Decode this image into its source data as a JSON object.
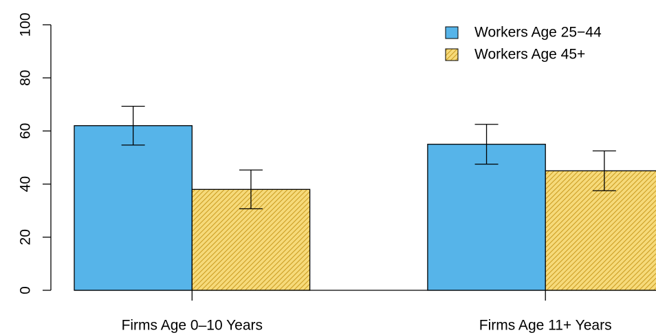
{
  "chart_data": {
    "type": "bar",
    "categories": [
      "Firms Age 0–10 Years",
      "Firms Age 11+ Years"
    ],
    "series": [
      {
        "name": "Workers Age 25−44",
        "color": "#56b4e9",
        "values": [
          62,
          55
        ],
        "errors": [
          7.3,
          7.5
        ]
      },
      {
        "name": "Workers Age 45+",
        "color": "#f0c94a",
        "hatch": true,
        "values": [
          38,
          45
        ],
        "errors": [
          7.3,
          7.5
        ]
      }
    ],
    "ylim": [
      0,
      100
    ],
    "yticks": [
      0,
      20,
      40,
      60,
      80,
      100
    ],
    "legend": "topright"
  }
}
